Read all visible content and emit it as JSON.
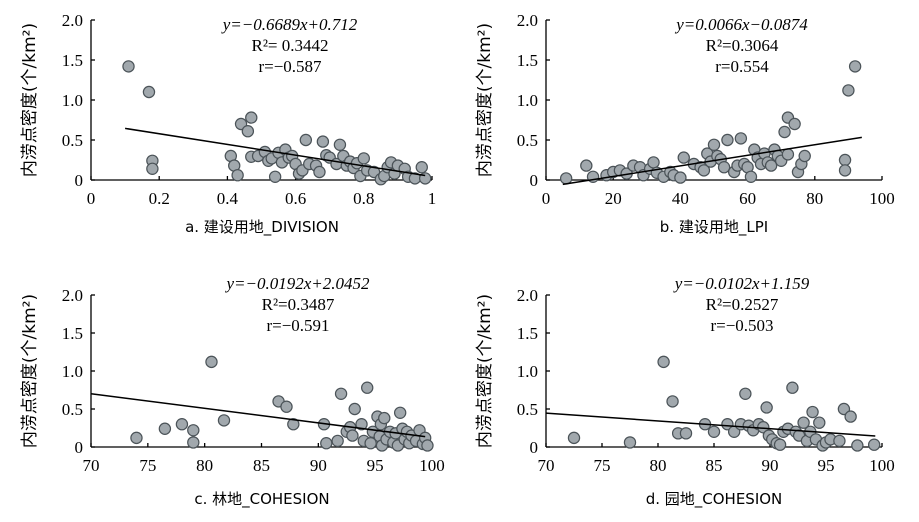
{
  "chart_data": [
    {
      "type": "scatter",
      "caption": "a. 建设用地_DIVISION",
      "ylabel": "内涝点密度(个/km²)",
      "xlim": [
        0,
        1
      ],
      "ylim": [
        0,
        2.0
      ],
      "xticks": [
        "0",
        "0.2",
        "0.4",
        "0.6",
        "0.8",
        "1"
      ],
      "yticks": [
        "0",
        "0.5",
        "1.0",
        "1.5",
        "2.0"
      ],
      "annotation": [
        "y=−0.6689x+0.712",
        "R²= 0.3442",
        "r=−0.587"
      ],
      "fit": {
        "slope": -0.6689,
        "intercept": 0.712
      },
      "points": [
        [
          0.11,
          1.42
        ],
        [
          0.17,
          1.1
        ],
        [
          0.18,
          0.24
        ],
        [
          0.18,
          0.14
        ],
        [
          0.41,
          0.3
        ],
        [
          0.42,
          0.18
        ],
        [
          0.43,
          0.06
        ],
        [
          0.44,
          0.7
        ],
        [
          0.46,
          0.61
        ],
        [
          0.47,
          0.78
        ],
        [
          0.47,
          0.29
        ],
        [
          0.49,
          0.3
        ],
        [
          0.51,
          0.35
        ],
        [
          0.52,
          0.24
        ],
        [
          0.53,
          0.27
        ],
        [
          0.54,
          0.04
        ],
        [
          0.55,
          0.34
        ],
        [
          0.56,
          0.22
        ],
        [
          0.57,
          0.38
        ],
        [
          0.58,
          0.28
        ],
        [
          0.59,
          0.3
        ],
        [
          0.6,
          0.2
        ],
        [
          0.61,
          0.08
        ],
        [
          0.62,
          0.12
        ],
        [
          0.63,
          0.5
        ],
        [
          0.64,
          0.2
        ],
        [
          0.66,
          0.18
        ],
        [
          0.67,
          0.1
        ],
        [
          0.68,
          0.48
        ],
        [
          0.69,
          0.31
        ],
        [
          0.7,
          0.28
        ],
        [
          0.72,
          0.2
        ],
        [
          0.73,
          0.44
        ],
        [
          0.74,
          0.3
        ],
        [
          0.75,
          0.18
        ],
        [
          0.76,
          0.23
        ],
        [
          0.77,
          0.15
        ],
        [
          0.78,
          0.21
        ],
        [
          0.79,
          0.05
        ],
        [
          0.8,
          0.27
        ],
        [
          0.81,
          0.12
        ],
        [
          0.83,
          0.1
        ],
        [
          0.85,
          0.01
        ],
        [
          0.86,
          0.05
        ],
        [
          0.87,
          0.16
        ],
        [
          0.88,
          0.22
        ],
        [
          0.89,
          0.08
        ],
        [
          0.9,
          0.18
        ],
        [
          0.92,
          0.14
        ],
        [
          0.93,
          0.04
        ],
        [
          0.95,
          0.02
        ],
        [
          0.97,
          0.16
        ],
        [
          0.98,
          0.02
        ]
      ]
    },
    {
      "type": "scatter",
      "caption": "b. 建设用地_LPI",
      "ylabel": "内涝点密度(个/km²)",
      "xlim": [
        0,
        100
      ],
      "ylim": [
        0,
        2.0
      ],
      "xticks": [
        "0",
        "20",
        "40",
        "60",
        "80",
        "100"
      ],
      "yticks": [
        "0",
        "0.5",
        "1.0",
        "1.5",
        "2.0"
      ],
      "annotation": [
        "y=0.0066x−0.0874",
        "R²=0.3064",
        "r=0.554"
      ],
      "fit": {
        "slope": 0.0066,
        "intercept": -0.0874
      },
      "points": [
        [
          6,
          0.02
        ],
        [
          12,
          0.18
        ],
        [
          14,
          0.04
        ],
        [
          18,
          0.06
        ],
        [
          20,
          0.1
        ],
        [
          22,
          0.12
        ],
        [
          24,
          0.08
        ],
        [
          26,
          0.18
        ],
        [
          28,
          0.16
        ],
        [
          29,
          0.06
        ],
        [
          31,
          0.14
        ],
        [
          32,
          0.22
        ],
        [
          33,
          0.09
        ],
        [
          35,
          0.04
        ],
        [
          37,
          0.1
        ],
        [
          38,
          0.06
        ],
        [
          40,
          0.03
        ],
        [
          41,
          0.28
        ],
        [
          44,
          0.2
        ],
        [
          46,
          0.16
        ],
        [
          47,
          0.12
        ],
        [
          48,
          0.33
        ],
        [
          49,
          0.23
        ],
        [
          50,
          0.44
        ],
        [
          51,
          0.3
        ],
        [
          52,
          0.26
        ],
        [
          53,
          0.16
        ],
        [
          54,
          0.5
        ],
        [
          56,
          0.1
        ],
        [
          57,
          0.18
        ],
        [
          58,
          0.52
        ],
        [
          59,
          0.2
        ],
        [
          60,
          0.16
        ],
        [
          61,
          0.04
        ],
        [
          62,
          0.38
        ],
        [
          63,
          0.28
        ],
        [
          64,
          0.2
        ],
        [
          65,
          0.33
        ],
        [
          66,
          0.22
        ],
        [
          67,
          0.18
        ],
        [
          68,
          0.38
        ],
        [
          69,
          0.3
        ],
        [
          70,
          0.24
        ],
        [
          71,
          0.6
        ],
        [
          72,
          0.32
        ],
        [
          72,
          0.78
        ],
        [
          74,
          0.7
        ],
        [
          75,
          0.1
        ],
        [
          76,
          0.2
        ],
        [
          77,
          0.3
        ],
        [
          89,
          0.25
        ],
        [
          89,
          0.12
        ],
        [
          90,
          1.12
        ],
        [
          92,
          1.42
        ]
      ]
    },
    {
      "type": "scatter",
      "caption": "c. 林地_COHESION",
      "ylabel": "内涝点密度(个/km²)",
      "xlim": [
        70,
        100
      ],
      "ylim": [
        0,
        2.0
      ],
      "xticks": [
        "70",
        "75",
        "80",
        "85",
        "90",
        "95",
        "100"
      ],
      "yticks": [
        "0",
        "0.5",
        "1.0",
        "1.5",
        "2.0"
      ],
      "annotation": [
        "y=−0.0192x+2.0452",
        "R²=0.3487",
        "r=−0.591"
      ],
      "fit": {
        "slope": -0.0192,
        "intercept": 2.0452
      },
      "points": [
        [
          74,
          0.12
        ],
        [
          76.5,
          0.24
        ],
        [
          78,
          0.3
        ],
        [
          79,
          0.22
        ],
        [
          79,
          0.06
        ],
        [
          80.6,
          1.12
        ],
        [
          81.7,
          0.35
        ],
        [
          86.5,
          0.6
        ],
        [
          87.2,
          0.53
        ],
        [
          87.8,
          0.3
        ],
        [
          90.5,
          0.3
        ],
        [
          90.7,
          0.05
        ],
        [
          91.7,
          0.08
        ],
        [
          92.0,
          0.7
        ],
        [
          92.5,
          0.2
        ],
        [
          92.8,
          0.26
        ],
        [
          93.0,
          0.15
        ],
        [
          93.2,
          0.5
        ],
        [
          93.8,
          0.3
        ],
        [
          94.0,
          0.08
        ],
        [
          94.3,
          0.78
        ],
        [
          94.6,
          0.05
        ],
        [
          94.8,
          0.2
        ],
        [
          95.2,
          0.4
        ],
        [
          95.4,
          0.14
        ],
        [
          95.5,
          0.3
        ],
        [
          95.6,
          0.02
        ],
        [
          95.8,
          0.38
        ],
        [
          96.0,
          0.1
        ],
        [
          96.3,
          0.2
        ],
        [
          96.6,
          0.06
        ],
        [
          96.8,
          0.18
        ],
        [
          97.0,
          0.02
        ],
        [
          97.2,
          0.45
        ],
        [
          97.4,
          0.24
        ],
        [
          97.6,
          0.1
        ],
        [
          97.8,
          0.2
        ],
        [
          98.0,
          0.05
        ],
        [
          98.2,
          0.15
        ],
        [
          98.6,
          0.08
        ],
        [
          98.9,
          0.22
        ],
        [
          99.2,
          0.04
        ],
        [
          99.4,
          0.12
        ],
        [
          99.6,
          0.02
        ]
      ]
    },
    {
      "type": "scatter",
      "caption": "d. 园地_COHESION",
      "ylabel": "内涝点密度(个/km²)",
      "xlim": [
        70,
        100
      ],
      "ylim": [
        0,
        2.0
      ],
      "xticks": [
        "70",
        "75",
        "80",
        "85",
        "90",
        "95",
        "100"
      ],
      "yticks": [
        "0",
        "0.5",
        "1.0",
        "1.5",
        "2.0"
      ],
      "annotation": [
        "y=−0.0102x+1.159",
        "R²=0.2527",
        "r=−0.503"
      ],
      "fit": {
        "slope": -0.0102,
        "intercept": 1.159
      },
      "points": [
        [
          72.5,
          0.12
        ],
        [
          77.5,
          0.06
        ],
        [
          80.5,
          1.12
        ],
        [
          81.3,
          0.6
        ],
        [
          81.8,
          0.18
        ],
        [
          82.5,
          0.18
        ],
        [
          84.2,
          0.3
        ],
        [
          85,
          0.2
        ],
        [
          86.2,
          0.3
        ],
        [
          86.8,
          0.2
        ],
        [
          87.4,
          0.3
        ],
        [
          87.8,
          0.7
        ],
        [
          88.1,
          0.28
        ],
        [
          88.5,
          0.22
        ],
        [
          89,
          0.3
        ],
        [
          89.4,
          0.26
        ],
        [
          89.7,
          0.52
        ],
        [
          89.9,
          0.15
        ],
        [
          90.2,
          0.1
        ],
        [
          90.6,
          0.05
        ],
        [
          90.9,
          0.03
        ],
        [
          91.2,
          0.2
        ],
        [
          91.6,
          0.24
        ],
        [
          92.0,
          0.78
        ],
        [
          92.3,
          0.2
        ],
        [
          92.6,
          0.15
        ],
        [
          93.0,
          0.32
        ],
        [
          93.3,
          0.08
        ],
        [
          93.6,
          0.2
        ],
        [
          93.8,
          0.46
        ],
        [
          94.1,
          0.1
        ],
        [
          94.4,
          0.32
        ],
        [
          94.7,
          0.02
        ],
        [
          95.0,
          0.06
        ],
        [
          95.4,
          0.1
        ],
        [
          96.2,
          0.08
        ],
        [
          96.6,
          0.5
        ],
        [
          97.2,
          0.4
        ],
        [
          97.8,
          0.02
        ],
        [
          99.3,
          0.03
        ]
      ]
    }
  ]
}
